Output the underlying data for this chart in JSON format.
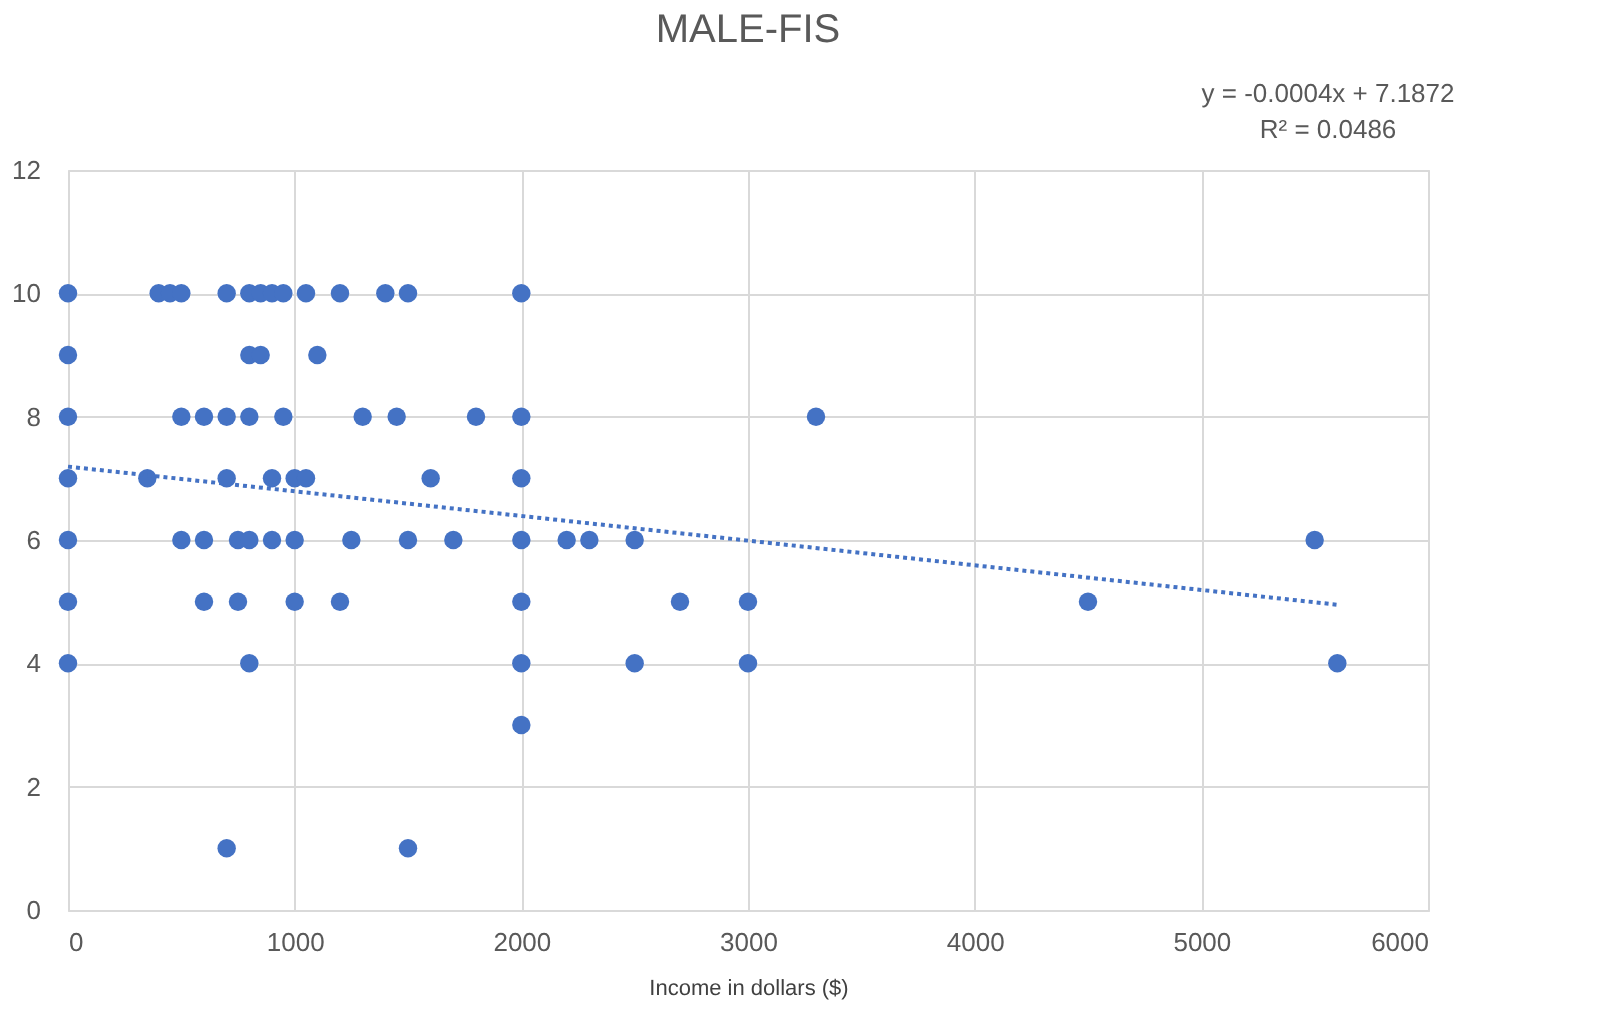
{
  "chart_data": {
    "type": "scatter",
    "title": "MALE-FIS",
    "xlabel": "Income in dollars ($)",
    "xlim": [
      0,
      6000
    ],
    "xticks": [
      0,
      1000,
      2000,
      3000,
      4000,
      5000,
      6000
    ],
    "ylim": [
      0,
      12
    ],
    "yticks": [
      0,
      2,
      4,
      6,
      8,
      10,
      12
    ],
    "grid": true,
    "marker": "circle",
    "annotations": [
      "y = -0.0004x + 7.1872",
      "R² = 0.0486"
    ],
    "series": [
      {
        "color": "#4472c4",
        "x": [
          0,
          400,
          450,
          500,
          700,
          800,
          850,
          900,
          950,
          1050,
          1200,
          1400,
          1500,
          2000,
          0,
          800,
          850,
          1100,
          0,
          500,
          600,
          700,
          800,
          950,
          1300,
          1450,
          1800,
          2000,
          3300,
          0,
          350,
          700,
          900,
          1000,
          1050,
          1600,
          2000,
          0,
          500,
          600,
          750,
          800,
          900,
          1000,
          1250,
          1500,
          1700,
          2000,
          2200,
          2300,
          2500,
          5500,
          0,
          600,
          750,
          1000,
          1200,
          2000,
          2700,
          3000,
          4500,
          0,
          800,
          2000,
          2500,
          3000,
          5600,
          2000,
          700,
          1500
        ],
        "values": [
          10,
          10,
          10,
          10,
          10,
          10,
          10,
          10,
          10,
          10,
          10,
          10,
          10,
          10,
          9,
          9,
          9,
          9,
          8,
          8,
          8,
          8,
          8,
          8,
          8,
          8,
          8,
          8,
          8,
          7,
          7,
          7,
          7,
          7,
          7,
          7,
          7,
          6,
          6,
          6,
          6,
          6,
          6,
          6,
          6,
          6,
          6,
          6,
          6,
          6,
          6,
          6,
          5,
          5,
          5,
          5,
          5,
          5,
          5,
          5,
          5,
          4,
          4,
          4,
          4,
          4,
          4,
          3,
          1,
          1
        ]
      },
      {
        "type": "line",
        "color": "#4472c4",
        "line_style": "dotted",
        "marker": "none",
        "x": [
          0,
          5600
        ],
        "values": [
          7.19,
          4.95
        ]
      }
    ]
  }
}
